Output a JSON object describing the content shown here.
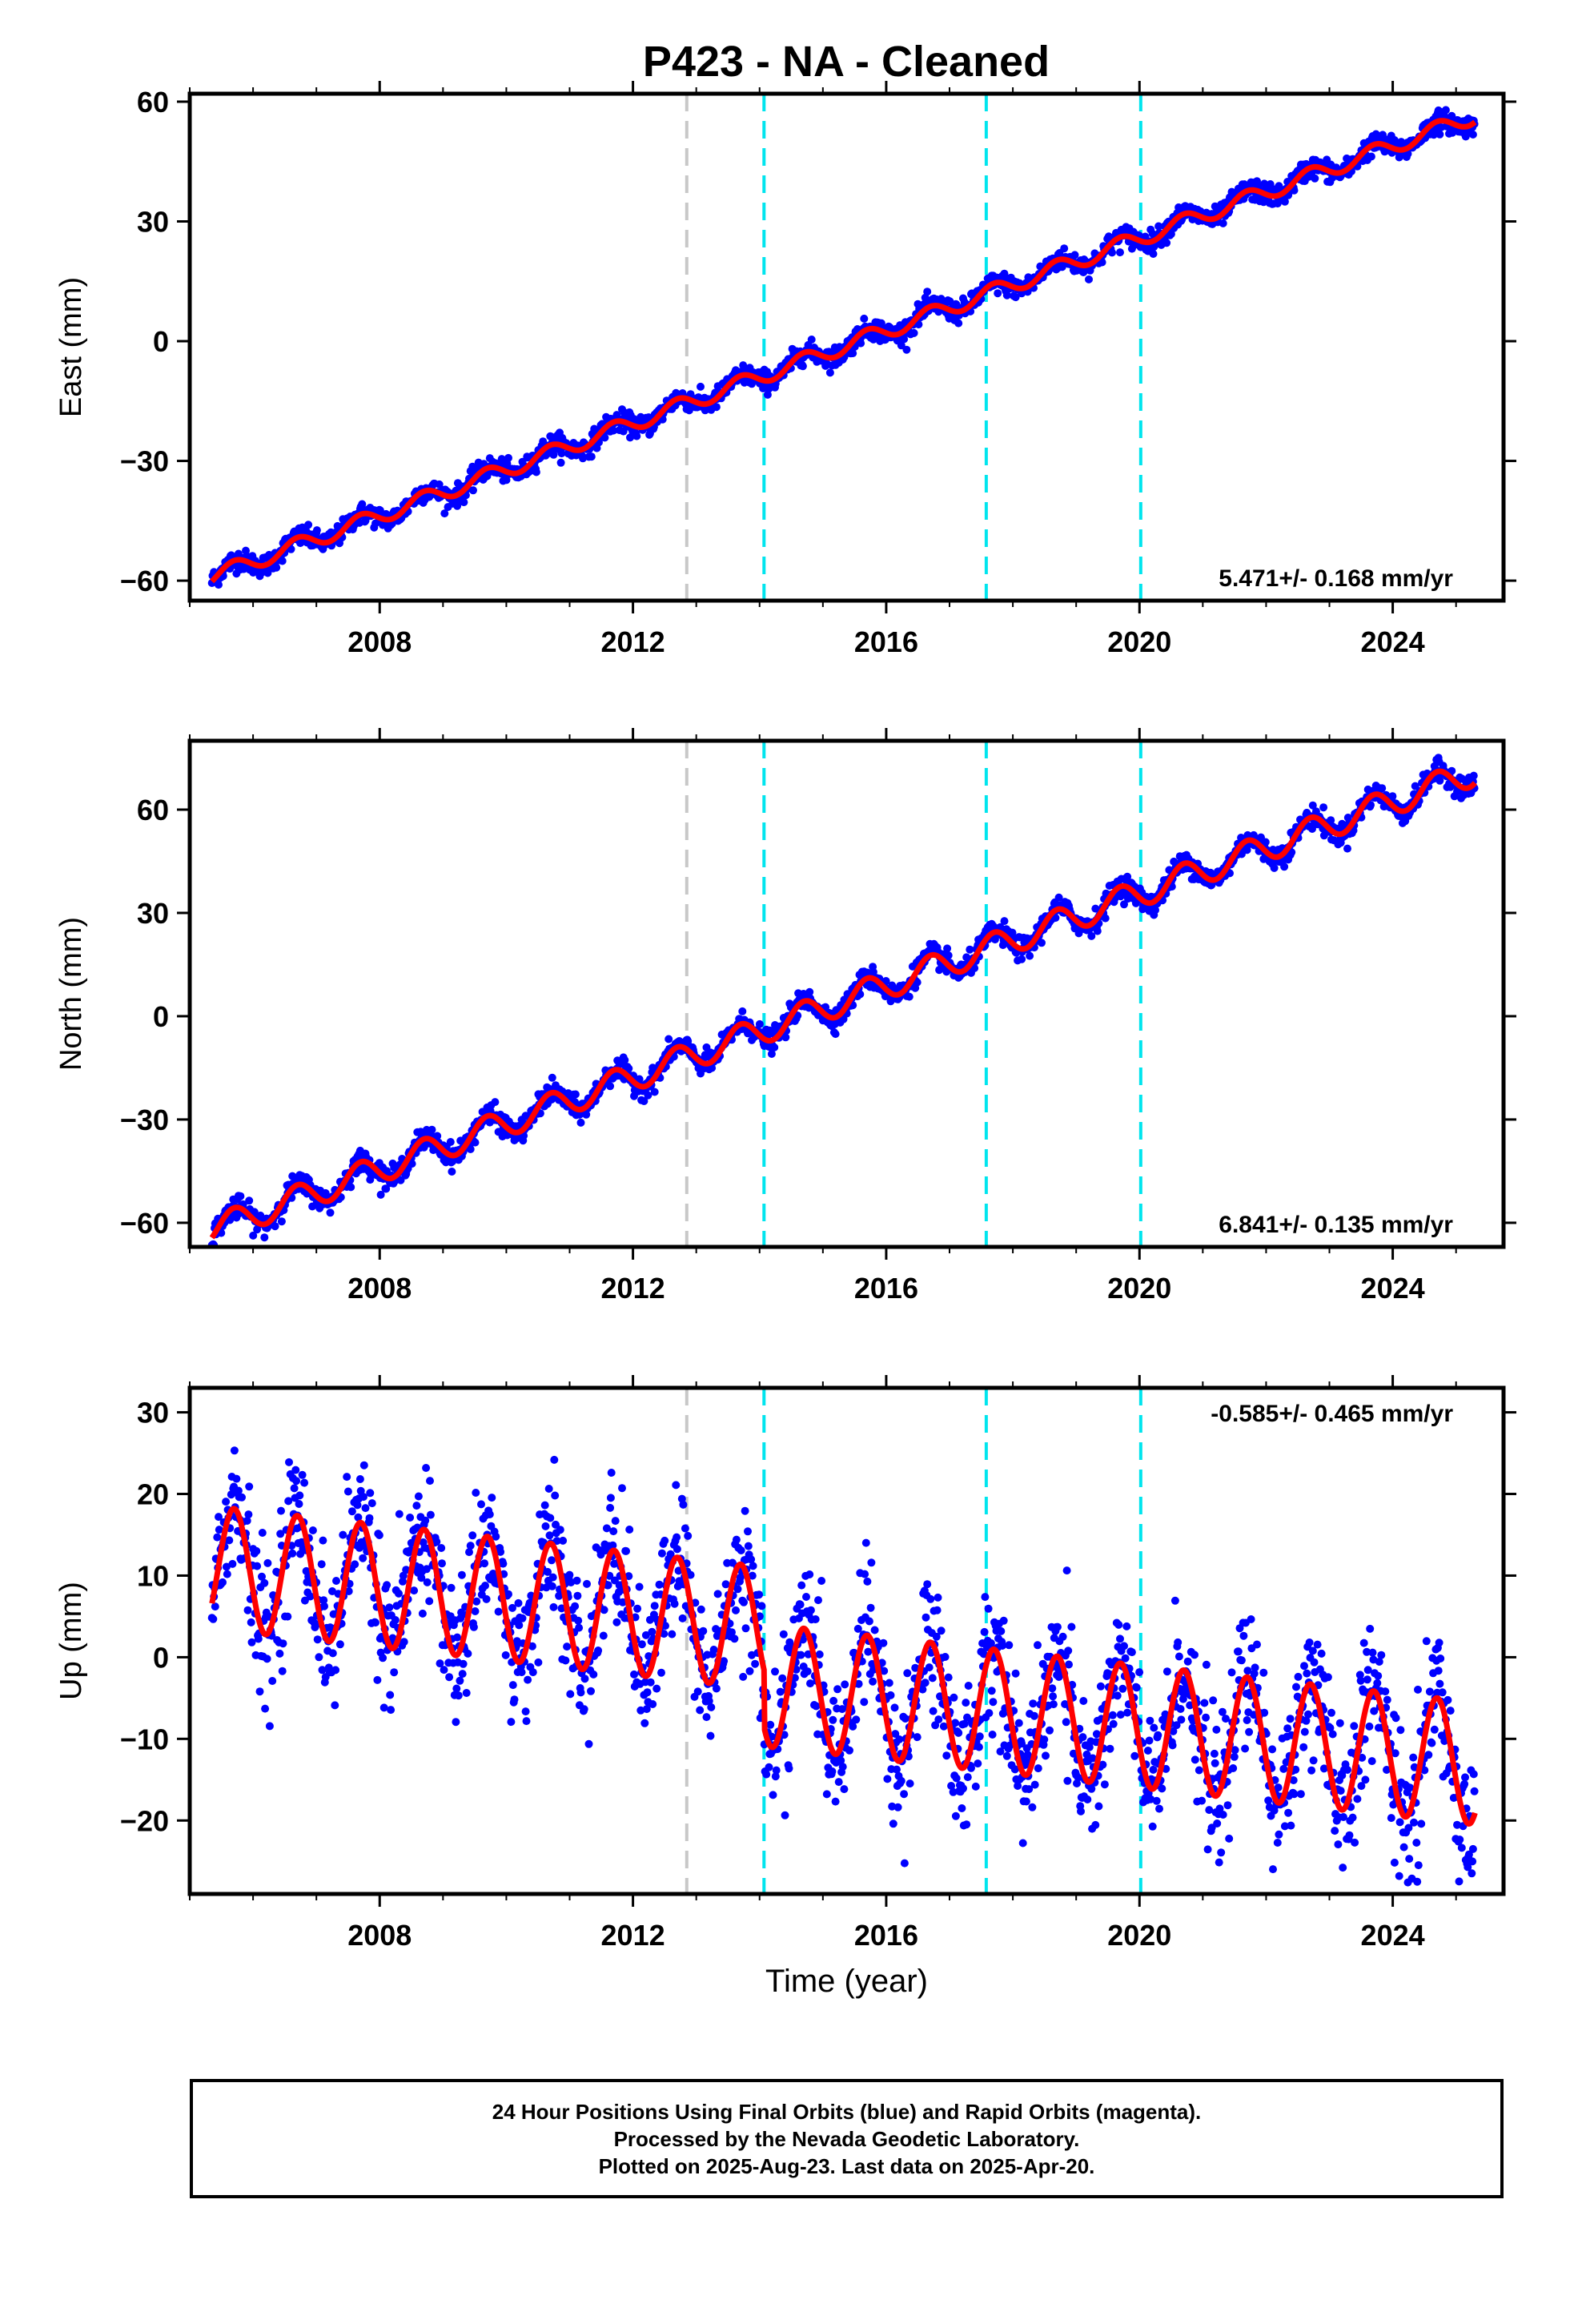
{
  "title": "P423  - NA - Cleaned",
  "colors": {
    "data": "#0000ff",
    "model": "#ff0000",
    "break_gray": "#c8c8c8",
    "break_cyan": "#00e5ee"
  },
  "chart_data": [
    {
      "type": "scatter",
      "component": "east",
      "ylabel": "East (mm)",
      "xlabel": "",
      "xlim": [
        2005.0,
        2025.75
      ],
      "ylim": [
        -65,
        62
      ],
      "yticks": [
        60,
        30,
        0,
        -30,
        -60
      ],
      "xticks": [
        2008,
        2012,
        2016,
        2020,
        2024
      ],
      "rate_label": "5.471+/- 0.168 mm/yr",
      "rate_position": "bottom-right",
      "model": {
        "start_year": 2005.35,
        "end_year": 2025.3,
        "start_value": -59.0,
        "end_value": 56.5,
        "annual_amplitude": 2.0,
        "steps": []
      },
      "scatter_sd": 1.3,
      "breaks": {
        "gray": [
          2012.85
        ],
        "cyan": [
          2014.07,
          2017.58,
          2020.02
        ]
      }
    },
    {
      "type": "scatter",
      "component": "north",
      "ylabel": "North (mm)",
      "xlabel": "",
      "xlim": [
        2005.0,
        2025.75
      ],
      "ylim": [
        -67,
        80
      ],
      "yticks": [
        60,
        30,
        0,
        -30,
        -60
      ],
      "xticks": [
        2008,
        2012,
        2016,
        2020,
        2024
      ],
      "rate_label": "6.841+/- 0.135 mm/yr",
      "rate_position": "bottom-right",
      "model": {
        "start_year": 2005.35,
        "end_year": 2025.3,
        "start_value": -62.0,
        "end_value": 71.0,
        "annual_amplitude": 4.0,
        "steps": []
      },
      "scatter_sd": 1.6,
      "breaks": {
        "gray": [
          2012.85
        ],
        "cyan": [
          2014.07,
          2017.58,
          2020.02
        ]
      }
    },
    {
      "type": "scatter",
      "component": "up",
      "ylabel": "Up (mm)",
      "xlabel": "Time (year)",
      "xlim": [
        2005.0,
        2025.75
      ],
      "ylim": [
        -29,
        33
      ],
      "yticks": [
        30,
        20,
        10,
        0,
        -10,
        -20
      ],
      "xticks": [
        2008,
        2012,
        2016,
        2020,
        2024
      ],
      "rate_label": "-0.585+/- 0.465 mm/yr",
      "rate_position": "top-right",
      "model": {
        "start_year": 2005.35,
        "end_year": 2025.3,
        "start_value": 11.0,
        "end_value": -6.0,
        "annual_amplitude": 7.5,
        "steps": [
          {
            "year": 2014.07,
            "value": -7.0
          }
        ]
      },
      "scatter_sd": 4.2,
      "breaks": {
        "gray": [
          2012.85
        ],
        "cyan": [
          2014.07,
          2017.58,
          2020.02
        ]
      }
    }
  ],
  "footer": {
    "line1": "24 Hour Positions Using Final Orbits (blue) and Rapid Orbits (magenta).",
    "line2": "Processed by the Nevada Geodetic Laboratory.",
    "line3": "Plotted on 2025-Aug-23. Last data on 2025-Apr-20."
  }
}
